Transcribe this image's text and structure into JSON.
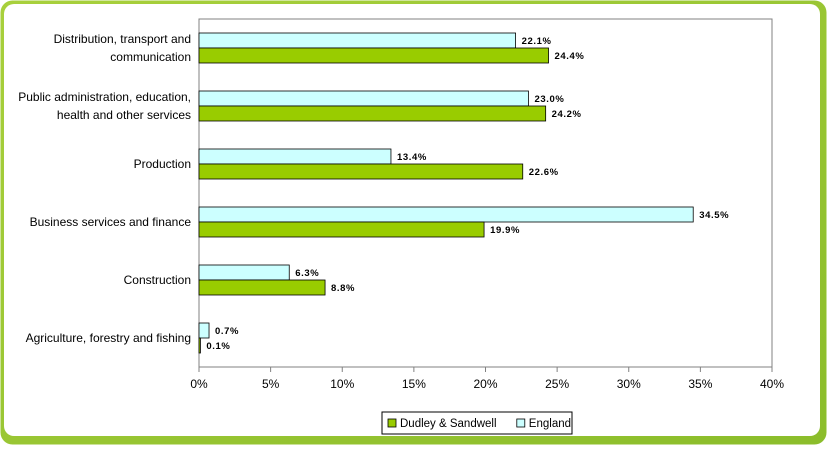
{
  "chart_data": {
    "type": "bar",
    "orientation": "horizontal",
    "categories": [
      [
        "Distribution, transport and",
        "communication"
      ],
      [
        "Public administration, education,",
        "health and other services"
      ],
      [
        "Production"
      ],
      [
        "Business services and finance"
      ],
      [
        "Construction"
      ],
      [
        "Agriculture, forestry and fishing"
      ]
    ],
    "series": [
      {
        "name": "England",
        "values": [
          22.1,
          23.0,
          13.4,
          34.5,
          6.3,
          0.7
        ],
        "labels": [
          "22.1%",
          "23.0%",
          "13.4%",
          "34.5%",
          "6.3%",
          "0.7%"
        ],
        "color": "#ccffff"
      },
      {
        "name": "Dudley & Sandwell",
        "values": [
          24.4,
          24.2,
          22.6,
          19.9,
          8.8,
          0.1
        ],
        "labels": [
          "24.4%",
          "24.2%",
          "22.6%",
          "19.9%",
          "8.8%",
          "0.1%"
        ],
        "color": "#99cc00"
      }
    ],
    "legend_order": [
      "Dudley & Sandwell",
      "England"
    ],
    "xlim": [
      0,
      40
    ],
    "xticks": [
      0,
      5,
      10,
      15,
      20,
      25,
      30,
      35,
      40
    ],
    "xtick_labels": [
      "0%",
      "5%",
      "10%",
      "15%",
      "20%",
      "25%",
      "30%",
      "35%",
      "40%"
    ],
    "grid": false,
    "legend_position": "bottom",
    "frame_color": "#8bbd2b"
  }
}
